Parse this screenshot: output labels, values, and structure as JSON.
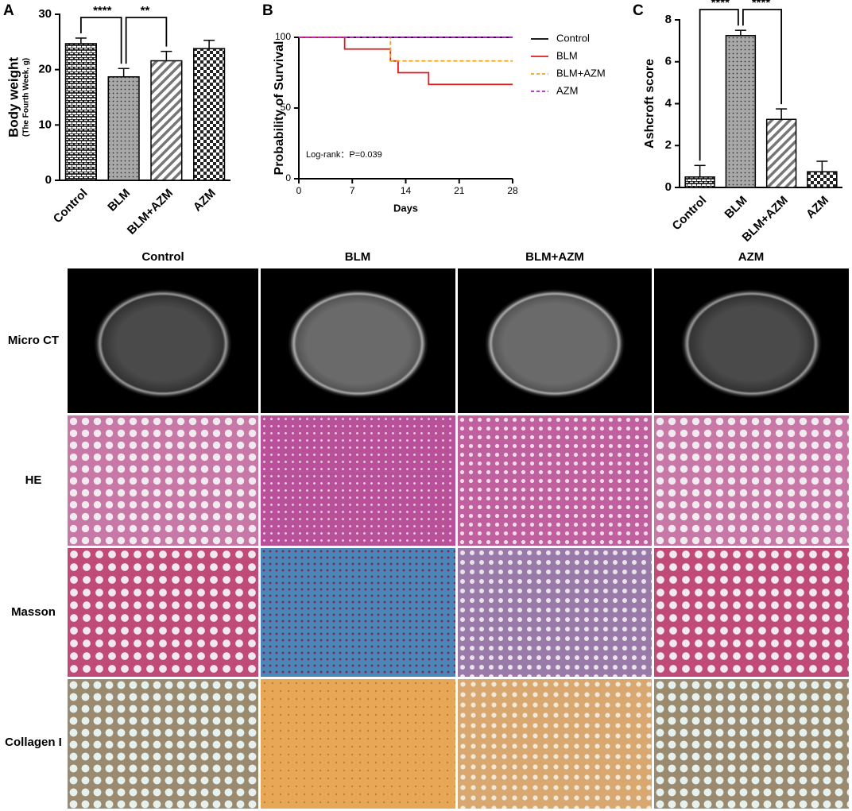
{
  "chart_data": [
    {
      "type": "bar",
      "panel": "A",
      "ylabel": "Body weight",
      "ylabel_sub": "(The Fourth Week, g)",
      "categories": [
        "Control",
        "BLM",
        "BLM+AZM",
        "AZM"
      ],
      "values": [
        24.7,
        18.7,
        21.6,
        23.8
      ],
      "errors": [
        1.0,
        1.5,
        1.7,
        1.5
      ],
      "fill_patterns": [
        "brick",
        "dots",
        "stripes",
        "checker"
      ],
      "ylim": [
        0,
        30
      ],
      "yticks": [
        0,
        10,
        20,
        30
      ],
      "significance": [
        {
          "between": [
            "Control",
            "BLM"
          ],
          "label": "****"
        },
        {
          "between": [
            "BLM",
            "BLM+AZM"
          ],
          "label": "**"
        }
      ]
    },
    {
      "type": "line",
      "panel": "B",
      "step": true,
      "xlabel": "Days",
      "ylabel": "Probability of Survival",
      "xlim": [
        0,
        28
      ],
      "xticks": [
        0,
        7,
        14,
        21,
        28
      ],
      "ylim": [
        0,
        100
      ],
      "yticks": [
        0,
        50,
        100
      ],
      "series": [
        {
          "name": "Control",
          "color": "#000000",
          "dash": false,
          "x": [
            0,
            28
          ],
          "values": [
            100,
            100
          ]
        },
        {
          "name": "BLM",
          "color": "#e0191b",
          "dash": false,
          "x": [
            0,
            6,
            12,
            13,
            17,
            28
          ],
          "values": [
            100,
            91.7,
            83.3,
            75,
            66.7,
            66.7
          ]
        },
        {
          "name": "BLM+AZM",
          "color": "#f0a020",
          "dash": true,
          "x": [
            0,
            12,
            28
          ],
          "values": [
            100,
            83.3,
            83.3
          ]
        },
        {
          "name": "AZM",
          "color": "#b01ec8",
          "dash": true,
          "x": [
            0,
            28
          ],
          "values": [
            100,
            100
          ]
        }
      ],
      "legend": "right",
      "annotation": "Log-rank：P=0.039"
    },
    {
      "type": "bar",
      "panel": "C",
      "ylabel": "Ashcroft score",
      "categories": [
        "Control",
        "BLM",
        "BLM+AZM",
        "AZM"
      ],
      "values": [
        0.5,
        7.25,
        3.25,
        0.75
      ],
      "errors": [
        0.55,
        0.25,
        0.5,
        0.5
      ],
      "fill_patterns": [
        "brick",
        "dots",
        "stripes",
        "checker"
      ],
      "ylim": [
        0,
        8
      ],
      "yticks": [
        0,
        2,
        4,
        6,
        8
      ],
      "significance": [
        {
          "between": [
            "Control",
            "BLM"
          ],
          "label": "****"
        },
        {
          "between": [
            "BLM",
            "BLM+AZM"
          ],
          "label": "****"
        }
      ]
    }
  ],
  "image_grid": {
    "columns": [
      "Control",
      "BLM",
      "BLM+AZM",
      "AZM"
    ],
    "rows": [
      "Micro CT",
      "HE",
      "Masson",
      "Collagen I"
    ]
  }
}
